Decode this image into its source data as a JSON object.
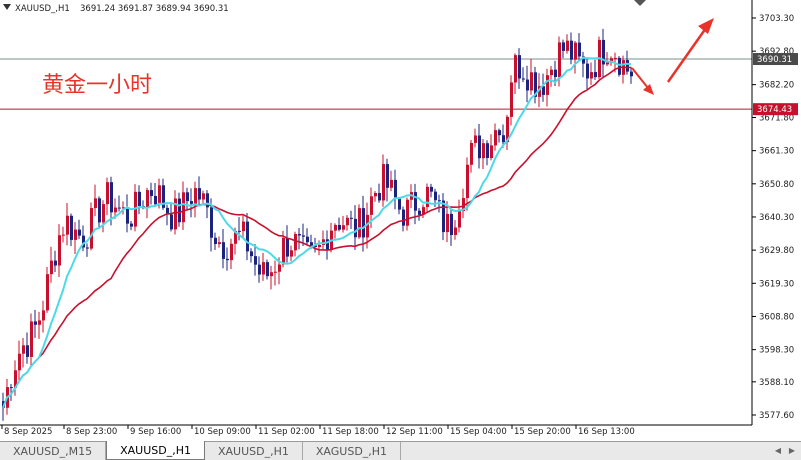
{
  "header": {
    "symbol_info": "XAUUSD_,H1",
    "ohlc": "3691.24 3691.87 3689.94 3690.31"
  },
  "annotation": {
    "text": "黄金一小时",
    "color": "#e8332a"
  },
  "price_labels": {
    "current": "3690.31",
    "level": "3674.43",
    "current_value": 3690.31,
    "level_value": 3674.43
  },
  "colors": {
    "bull": "#c8102e",
    "bear": "#1a237e",
    "ma_fast": "#4dd9e6",
    "ma_slow": "#c8102e",
    "level_line": "#c8102e",
    "current_line": "#7f8c8d",
    "arrow": "#e8332a"
  },
  "chart_data": {
    "type": "candlestick",
    "title": "XAUUSD_,H1",
    "y_axis_ticks": [
      "3703.30",
      "3692.80",
      "3682.20",
      "3671.80",
      "3661.30",
      "3650.80",
      "3640.30",
      "3629.80",
      "3619.30",
      "3608.80",
      "3598.30",
      "3588.10",
      "3577.60"
    ],
    "ylim": [
      3575.0,
      3708.0
    ],
    "x_axis_ticks": [
      "8 Sep 2025",
      "8 Sep 23:00",
      "9 Sep 16:00",
      "10 Sep 09:00",
      "11 Sep 02:00",
      "11 Sep 18:00",
      "12 Sep 11:00",
      "15 Sep 04:00",
      "15 Sep 20:00",
      "16 Sep 13:00"
    ],
    "key_points": [
      {
        "t": "8 Sep 2025",
        "close": 3580.0
      },
      {
        "t": "8 Sep 23:00",
        "close": 3636.0
      },
      {
        "t": "9 Sep 16:00",
        "close": 3645.0
      },
      {
        "t": "10 Sep 09:00",
        "close": 3645.0
      },
      {
        "t": "11 Sep 02:00",
        "close": 3625.0
      },
      {
        "t": "11 Sep 18:00",
        "close": 3632.0
      },
      {
        "t": "12 Sep 11:00",
        "close": 3648.0
      },
      {
        "t": "15 Sep 04:00",
        "close": 3641.0
      },
      {
        "t": "15 Sep 20:00",
        "close": 3684.0
      },
      {
        "t": "16 Sep 13:00",
        "close": 3691.0
      }
    ],
    "series": [
      {
        "name": "",
        "kind": "moving-average-fast"
      },
      {
        "name": "",
        "kind": "moving-average-slow"
      }
    ],
    "horizontal_levels": [
      3674.43,
      3690.31
    ],
    "legend": "none",
    "grid": false
  },
  "tabs": [
    {
      "label": "XAUUSD_,M15",
      "active": false
    },
    {
      "label": "XAUUSD_,H1",
      "active": true
    },
    {
      "label": "XAUUSD_,H1",
      "active": false
    },
    {
      "label": "XAGUSD_,H1",
      "active": false
    }
  ]
}
